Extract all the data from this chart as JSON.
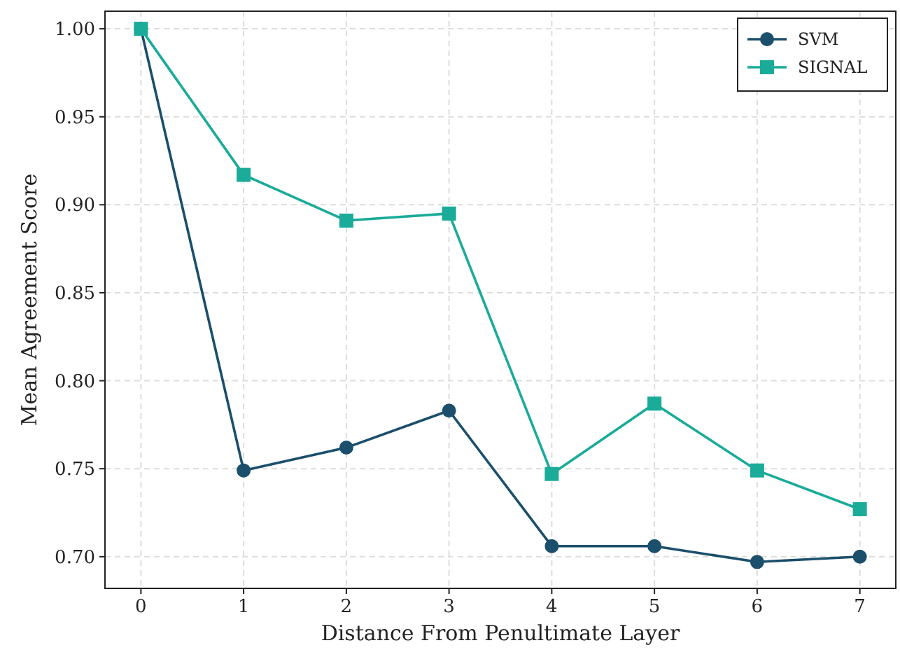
{
  "chart_data": {
    "type": "line",
    "xlabel": "Distance From Penultimate Layer",
    "ylabel": "Mean Agreement Score",
    "x": [
      0,
      1,
      2,
      3,
      4,
      5,
      6,
      7
    ],
    "series": [
      {
        "name": "SVM",
        "color": "#1b4f6b",
        "marker": "circle",
        "values": [
          1.0,
          0.749,
          0.762,
          0.783,
          0.706,
          0.706,
          0.697,
          0.7
        ]
      },
      {
        "name": "SIGNAL",
        "color": "#1aab99",
        "marker": "square",
        "values": [
          1.0,
          0.917,
          0.891,
          0.895,
          0.747,
          0.787,
          0.749,
          0.727
        ]
      }
    ],
    "xlim": [
      -0.35,
      7.35
    ],
    "xticks": [
      0,
      1,
      2,
      3,
      4,
      5,
      6,
      7
    ],
    "ylim": [
      0.682,
      1.01
    ],
    "yticks": [
      {
        "value": 0.7,
        "label": "0.70"
      },
      {
        "value": 0.75,
        "label": "0.75"
      },
      {
        "value": 0.8,
        "label": "0.80"
      },
      {
        "value": 0.85,
        "label": "0.85"
      },
      {
        "value": 0.9,
        "label": "0.90"
      },
      {
        "value": 0.95,
        "label": "0.95"
      },
      {
        "value": 1.0,
        "label": "1.00"
      }
    ],
    "grid": true,
    "legend": "top right",
    "line_style": "solid"
  }
}
